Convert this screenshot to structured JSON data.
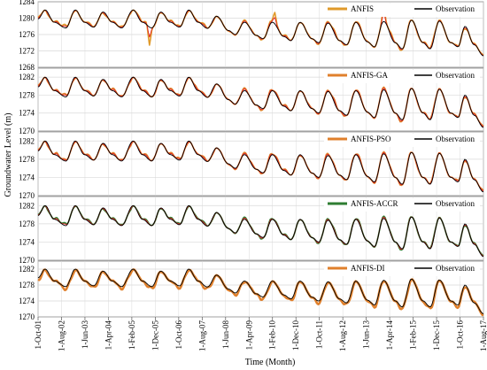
{
  "chart_data": {
    "type": "line",
    "xlabel": "Time (Month)",
    "ylabel": "Groundwater Level (m)",
    "x_tick_labels": [
      "1-Oct-01",
      "1-Aug-02",
      "1-Jun-03",
      "1-Apr-04",
      "1-Feb-05",
      "1-Dec-05",
      "1-Oct-06",
      "1-Aug-07",
      "1-Jun-08",
      "1-Apr-09",
      "1-Feb-10",
      "1-Dec-10",
      "1-Oct-11",
      "1-Aug-12",
      "1-Jun-13",
      "1-Apr-14",
      "1-Feb-15",
      "1-Dec-15",
      "1-Oct-16",
      "1-Aug-17"
    ],
    "x_range": [
      "2001-10-01",
      "2017-10-01"
    ],
    "grid": true,
    "legend_position": "top-right",
    "colors": {
      "observation": "#000000",
      "anfis": "#e09a2a",
      "anfis_ga": "#e0802c",
      "anfis_pso": "#e0802c",
      "anfis_accr": "#2e7d32",
      "anfis_di": "#e0802c",
      "model_line": "#e02020",
      "grid": "#d9d9d9"
    },
    "observation_key_points": [
      [
        "2001-10-01",
        1279.8
      ],
      [
        "2002-01-01",
        1282.0
      ],
      [
        "2002-05-01",
        1279.0
      ],
      [
        "2002-10-01",
        1277.6
      ],
      [
        "2003-02-01",
        1282.0
      ],
      [
        "2003-06-01",
        1279.0
      ],
      [
        "2003-10-01",
        1277.8
      ],
      [
        "2004-02-01",
        1281.5
      ],
      [
        "2004-06-01",
        1279.0
      ],
      [
        "2004-10-01",
        1277.6
      ],
      [
        "2005-03-01",
        1282.0
      ],
      [
        "2005-07-01",
        1279.0
      ],
      [
        "2005-11-01",
        1277.6
      ],
      [
        "2006-03-01",
        1281.5
      ],
      [
        "2006-07-01",
        1279.0
      ],
      [
        "2006-11-01",
        1277.8
      ],
      [
        "2007-03-01",
        1282.0
      ],
      [
        "2007-07-01",
        1279.0
      ],
      [
        "2007-11-01",
        1277.5
      ],
      [
        "2008-03-01",
        1280.5
      ],
      [
        "2008-08-01",
        1277.0
      ],
      [
        "2008-11-01",
        1276.0
      ],
      [
        "2009-03-01",
        1279.0
      ],
      [
        "2009-08-01",
        1275.8
      ],
      [
        "2009-11-01",
        1275.0
      ],
      [
        "2010-03-01",
        1279.0
      ],
      [
        "2010-08-01",
        1275.5
      ],
      [
        "2010-11-01",
        1274.5
      ],
      [
        "2011-03-01",
        1279.0
      ],
      [
        "2011-08-01",
        1275.0
      ],
      [
        "2011-11-01",
        1274.0
      ],
      [
        "2012-03-01",
        1278.8
      ],
      [
        "2012-08-01",
        1274.5
      ],
      [
        "2012-11-01",
        1273.5
      ],
      [
        "2013-03-01",
        1279.0
      ],
      [
        "2013-08-01",
        1274.2
      ],
      [
        "2013-11-01",
        1273.0
      ],
      [
        "2014-03-01",
        1279.2
      ],
      [
        "2014-08-01",
        1274.0
      ],
      [
        "2014-11-01",
        1272.5
      ],
      [
        "2015-03-01",
        1279.5
      ],
      [
        "2015-08-01",
        1274.0
      ],
      [
        "2015-11-01",
        1272.5
      ],
      [
        "2016-03-01",
        1279.3
      ],
      [
        "2016-08-01",
        1274.0
      ],
      [
        "2016-11-01",
        1273.0
      ],
      [
        "2017-02-01",
        1278.0
      ],
      [
        "2017-06-01",
        1273.5
      ],
      [
        "2017-10-01",
        1270.8
      ]
    ],
    "panels": [
      {
        "legend_model": "ANFIS",
        "legend_observation": "Observation",
        "ylim": [
          1268,
          1284
        ],
        "yticks": [
          "1268",
          "1272",
          "1276",
          "1280",
          "1284"
        ],
        "model_color": "#e09a2a",
        "model_offsets": [
          0.6,
          -0.5,
          0.4,
          0.7,
          -0.4,
          0.3,
          0.5,
          -0.6,
          0.2,
          0.4,
          -0.3,
          0.6,
          0.3,
          -0.5,
          0.4,
          0.5,
          -0.4,
          0.3,
          0.6,
          -0.5,
          0.2,
          -0.4,
          0.5,
          0.3,
          -0.4,
          0.6,
          0.2,
          0.5,
          -0.3,
          0.4,
          -0.5,
          0.3,
          0.6,
          -0.4,
          0.2,
          0.5,
          -0.3,
          0.4,
          0.8,
          -0.5,
          0.3,
          -0.4,
          0.6,
          0.5,
          -0.3,
          0.4,
          -0.6,
          0.3,
          0.2
        ],
        "model_spikes": [
          [
            "2005-10-01",
            -4.5
          ],
          [
            "2010-04-01",
            2.8
          ],
          [
            "2014-03-01",
            3.2
          ]
        ]
      },
      {
        "legend_model": "ANFIS-GA",
        "legend_observation": "Observation",
        "ylim": [
          1270,
          1284
        ],
        "yticks": [
          "1270",
          "1274",
          "1278",
          "1282"
        ],
        "model_color": "#e0802c",
        "model_offsets": [
          0.5,
          -0.4,
          0.3,
          0.6,
          -0.5,
          0.4,
          0.3,
          -0.4,
          0.5,
          0.2,
          -0.4,
          0.5,
          0.3,
          -0.6,
          0.4,
          0.4,
          -0.3,
          0.5,
          0.3,
          -0.5,
          0.4,
          -0.3,
          0.6,
          0.2,
          -0.5,
          0.5,
          0.3,
          0.4,
          -0.4,
          0.5,
          -0.3,
          0.2,
          0.6,
          -0.5,
          0.3,
          0.4,
          -0.4,
          0.5,
          0.3,
          -0.6,
          0.2,
          -0.3,
          0.5,
          0.4,
          -0.4,
          0.3,
          -0.5,
          0.4,
          0.3
        ],
        "model_spikes": []
      },
      {
        "legend_model": "ANFIS-PSO",
        "legend_observation": "Observation",
        "ylim": [
          1270,
          1284
        ],
        "yticks": [
          "1270",
          "1274",
          "1278",
          "1282"
        ],
        "model_color": "#e0802c",
        "model_offsets": [
          0.4,
          -0.5,
          0.5,
          0.3,
          -0.4,
          0.6,
          0.2,
          -0.5,
          0.4,
          0.3,
          -0.5,
          0.4,
          0.5,
          -0.3,
          0.3,
          0.6,
          -0.4,
          0.2,
          0.5,
          -0.4,
          0.3,
          -0.5,
          0.4,
          0.4,
          -0.3,
          0.5,
          0.4,
          0.3,
          -0.5,
          0.3,
          -0.4,
          0.5,
          0.3,
          -0.3,
          0.4,
          0.5,
          -0.5,
          0.3,
          0.4,
          -0.4,
          0.3,
          -0.5,
          0.4,
          0.3,
          -0.3,
          0.5,
          -0.4,
          0.2,
          0.4
        ],
        "model_spikes": []
      },
      {
        "legend_model": "ANFIS-ACCR",
        "legend_observation": "Observation",
        "ylim": [
          1270,
          1284
        ],
        "yticks": [
          "1270",
          "1274",
          "1278",
          "1282"
        ],
        "model_color": "#2e7d32",
        "model_offsets": [
          0.3,
          -0.4,
          0.4,
          0.5,
          -0.3,
          0.4,
          0.3,
          -0.5,
          0.3,
          0.2,
          -0.4,
          0.4,
          0.3,
          -0.4,
          0.3,
          0.4,
          -0.3,
          0.3,
          0.4,
          -0.4,
          0.3,
          -0.3,
          0.4,
          0.3,
          -0.4,
          0.4,
          0.2,
          0.3,
          -0.3,
          0.4,
          -0.4,
          0.3,
          0.4,
          -0.3,
          0.3,
          0.4,
          -0.3,
          0.4,
          0.3,
          -0.4,
          0.3,
          -0.3,
          0.4,
          0.3,
          -0.3,
          0.3,
          -0.4,
          0.3,
          0.2
        ],
        "model_spikes": []
      },
      {
        "legend_model": "ANFIS-DI",
        "legend_observation": "Observation",
        "ylim": [
          1270,
          1284
        ],
        "yticks": [
          "1270",
          "1274",
          "1278",
          "1282"
        ],
        "model_color": "#e0802c",
        "model_offsets": [
          -0.6,
          -0.5,
          0.2,
          -0.8,
          -0.5,
          0.3,
          -0.7,
          -0.4,
          0.2,
          -0.6,
          -0.5,
          0.3,
          -0.8,
          -0.4,
          0.2,
          -0.6,
          -0.5,
          0.3,
          -0.7,
          -0.4,
          0.2,
          -0.6,
          -0.5,
          0.3,
          -0.7,
          -0.4,
          0.2,
          -0.6,
          -0.5,
          0.3,
          -0.7,
          -0.4,
          0.2,
          -0.6,
          -0.5,
          0.3,
          -0.7,
          -0.4,
          0.2,
          -0.6,
          -0.5,
          0.3,
          -0.7,
          -0.4,
          0.2,
          -0.6,
          -0.5,
          0.3,
          -0.4
        ],
        "model_spikes": []
      }
    ]
  }
}
